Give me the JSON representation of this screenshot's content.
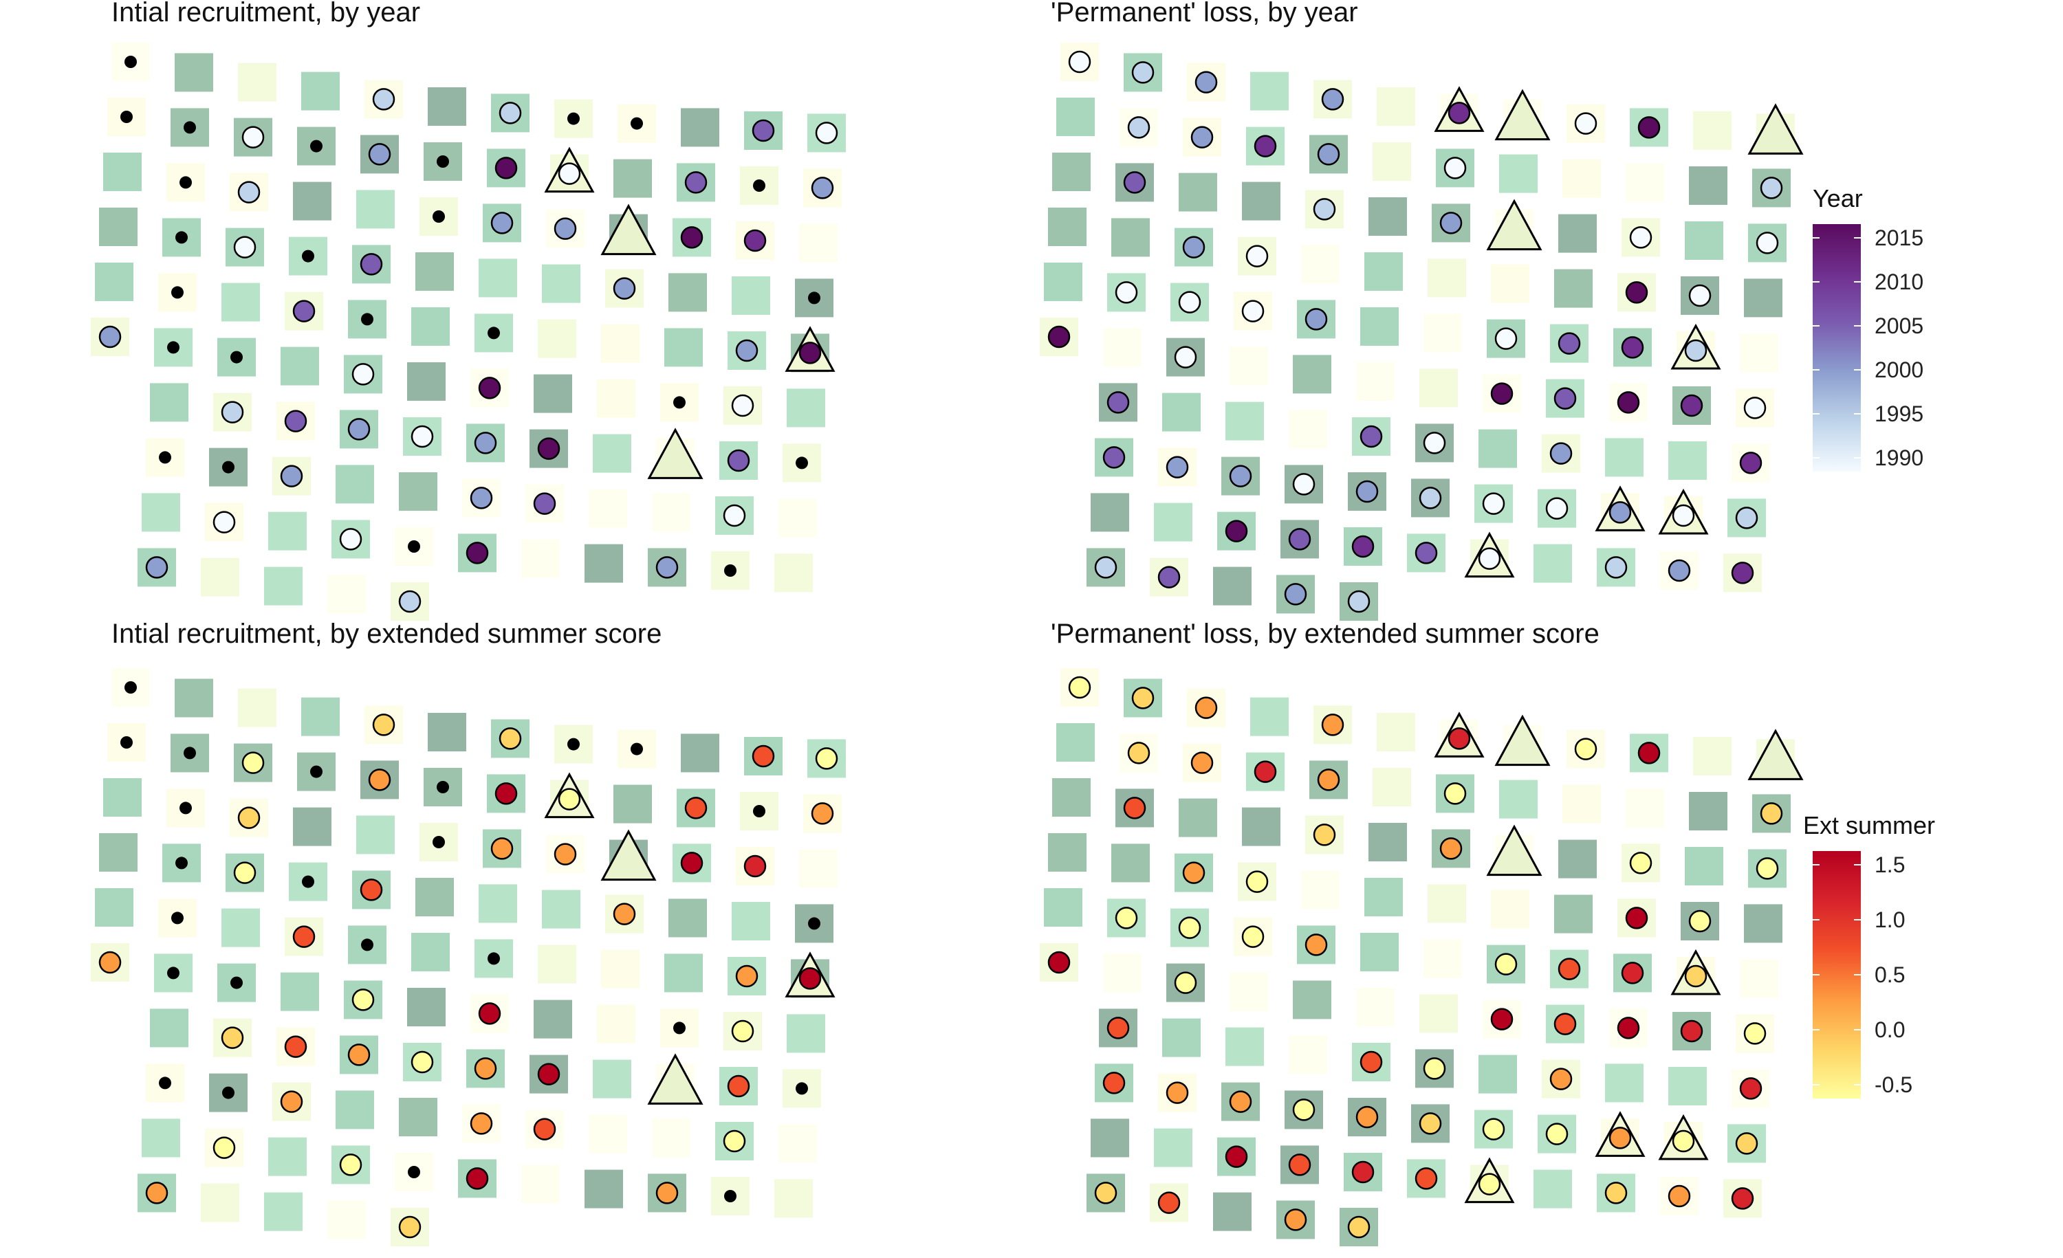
{
  "panels": {
    "tl": {
      "title": "Intial recruitment, by year"
    },
    "tr": {
      "title": "'Permanent' loss, by year"
    },
    "bl": {
      "title": "Intial recruitment, by extended summer score"
    },
    "br": {
      "title": "'Permanent' loss, by extended summer score"
    }
  },
  "legend_year": {
    "title": "Year",
    "ticks": [
      "2015",
      "2010",
      "2005",
      "2000",
      "1995",
      "1990"
    ],
    "colors": [
      "#f5fbff",
      "#bfd4ea",
      "#8c9fcf",
      "#7b5cb0",
      "#702f8e",
      "#5a0b5e"
    ]
  },
  "legend_summer": {
    "title": "Ext summer",
    "ticks": [
      "1.5",
      "1.0",
      "0.5",
      "0.0",
      "-0.5"
    ],
    "colors": [
      "#ffff9e",
      "#fed465",
      "#fd9b40",
      "#f2502a",
      "#d7232c",
      "#b5001f"
    ]
  },
  "chart_data": [
    {
      "type": "scatter",
      "panel": "Intial recruitment, by year",
      "encoding": "point fill = year; background tiles = site grid"
    },
    {
      "type": "scatter",
      "panel": "'Permanent' loss, by year",
      "encoding": "point fill = year; background tiles = site grid"
    },
    {
      "type": "scatter",
      "panel": "Intial recruitment, by extended summer score",
      "encoding": "point fill = extended summer score"
    },
    {
      "type": "scatter",
      "panel": "'Permanent' loss, by extended summer score",
      "encoding": "point fill = extended summer score"
    }
  ]
}
